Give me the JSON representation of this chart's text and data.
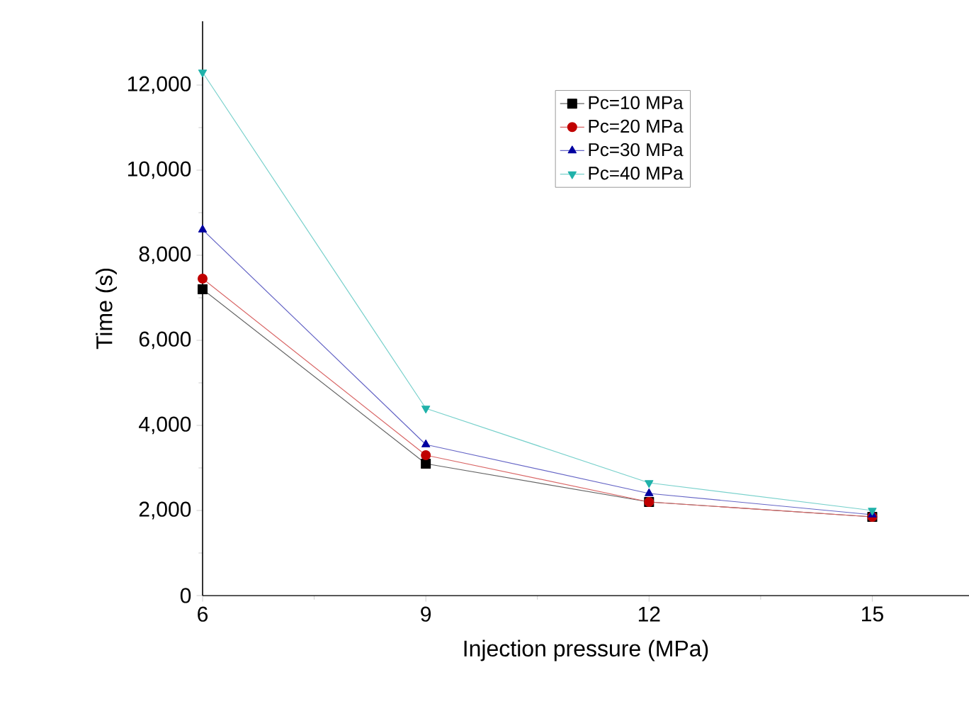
{
  "chart_data": {
    "type": "line",
    "xlabel": "Injection pressure (MPa)",
    "ylabel": "Time (s)",
    "x": [
      6,
      9,
      12,
      15
    ],
    "series": [
      {
        "name": "Pc=10 MPa",
        "color": "#000000",
        "marker": "square",
        "values": [
          7200,
          3100,
          2200,
          1850
        ]
      },
      {
        "name": "Pc=20 MPa",
        "color": "#c00000",
        "marker": "circle",
        "values": [
          7450,
          3300,
          2200,
          1850
        ]
      },
      {
        "name": "Pc=30 MPa",
        "color": "#0000a0",
        "marker": "triangle",
        "values": [
          8600,
          3550,
          2400,
          1900
        ]
      },
      {
        "name": "Pc=40 MPa",
        "color": "#20b2aa",
        "marker": "triangle down",
        "values": [
          12300,
          4400,
          2650,
          2000
        ]
      }
    ],
    "xlim": [
      6,
      16.3
    ],
    "xticks": [
      6,
      9,
      12,
      15
    ],
    "ylim": [
      0,
      13500
    ],
    "yticks": [
      0,
      {
        "value": 2000,
        "label": "2,000"
      },
      {
        "value": 4000,
        "label": "4,000"
      },
      {
        "value": 6000,
        "label": "6,000"
      },
      {
        "value": 8000,
        "label": "8,000"
      },
      {
        "value": 10000,
        "label": "10,000"
      },
      {
        "value": 12000,
        "label": "12,000"
      }
    ],
    "legend": "top right",
    "grid": false,
    "line_style": "solid"
  }
}
